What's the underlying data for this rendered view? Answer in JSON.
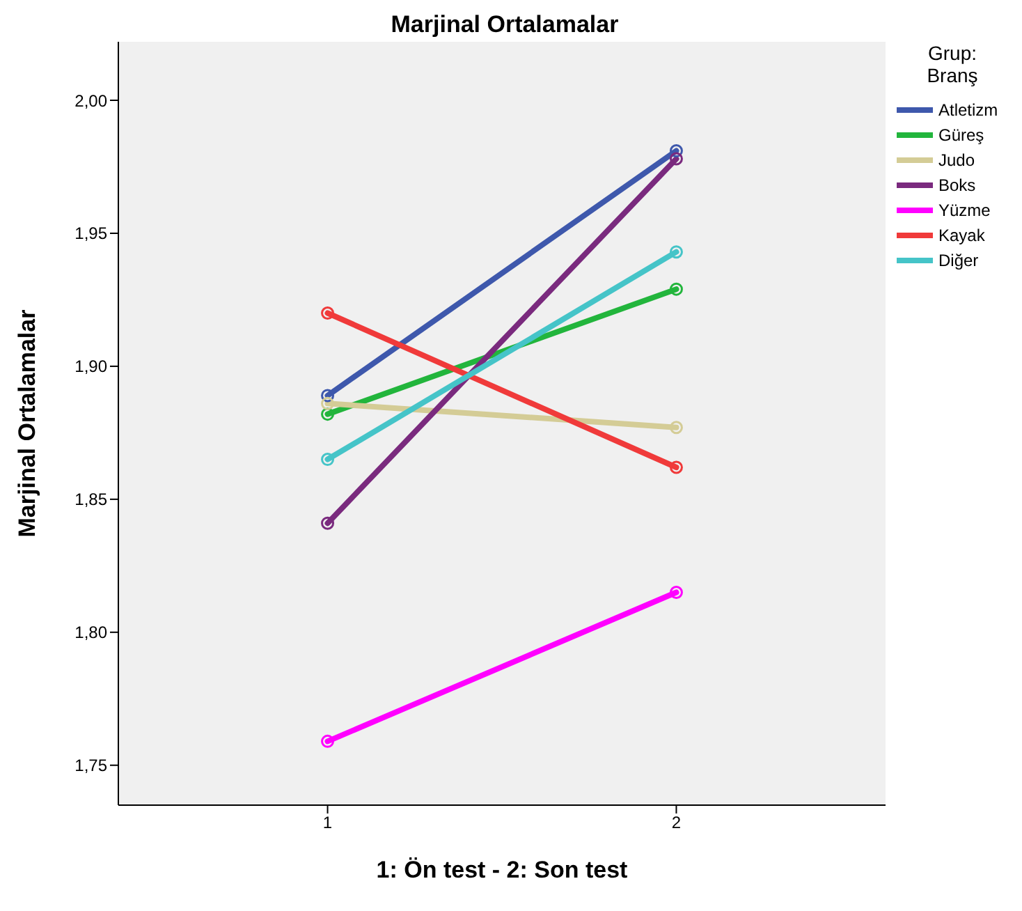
{
  "chart_data": {
    "type": "line",
    "title": "Marjinal Ortalamalar",
    "xlabel": "1: Ön test     -     2: Son test",
    "ylabel": "Marjinal Ortalamalar",
    "legend_title": "Grup: Branş",
    "x": [
      1,
      2
    ],
    "xlim": [
      0.4,
      2.6
    ],
    "xticks": [
      1,
      2
    ],
    "ylim": [
      1.735,
      2.022
    ],
    "yticks": [
      {
        "value": 1.75,
        "label": "1,75"
      },
      {
        "value": 1.8,
        "label": "1,80"
      },
      {
        "value": 1.85,
        "label": "1,85"
      },
      {
        "value": 1.9,
        "label": "1,90"
      },
      {
        "value": 1.95,
        "label": "1,95"
      },
      {
        "value": 2.0,
        "label": "2,00"
      }
    ],
    "series": [
      {
        "name": "Atletizm",
        "color": "#3e58ac",
        "values": [
          1.889,
          1.981
        ]
      },
      {
        "name": "Güreş",
        "color": "#22b53c",
        "values": [
          1.882,
          1.929
        ]
      },
      {
        "name": "Judo",
        "color": "#d4cc96",
        "values": [
          1.886,
          1.877
        ]
      },
      {
        "name": "Boks",
        "color": "#7a2a7e",
        "values": [
          1.841,
          1.978
        ]
      },
      {
        "name": "Yüzme",
        "color": "#ff00ff",
        "values": [
          1.759,
          1.815
        ]
      },
      {
        "name": "Kayak",
        "color": "#f03a3a",
        "values": [
          1.92,
          1.862
        ]
      },
      {
        "name": "Diğer",
        "color": "#45c4c8",
        "values": [
          1.865,
          1.943
        ]
      }
    ],
    "grid": false,
    "legend": "right",
    "marker": "circle",
    "line_style": "solid"
  }
}
